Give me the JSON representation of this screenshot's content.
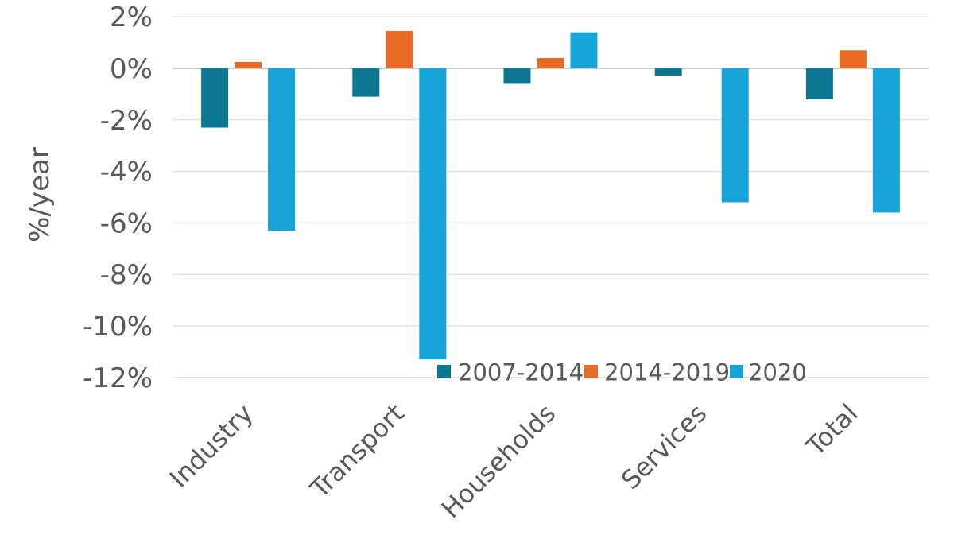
{
  "chart_data": {
    "type": "bar",
    "title": "",
    "xlabel": "",
    "ylabel": "%/year",
    "categories": [
      "Industry",
      "Transport",
      "Households",
      "Services",
      "Total"
    ],
    "series": [
      {
        "name": "2007-2014",
        "color": "#0d7690",
        "values": [
          -2.3,
          -1.1,
          -0.6,
          -0.3,
          -1.2
        ]
      },
      {
        "name": "2014-2019",
        "color": "#ea6b25",
        "values": [
          0.25,
          1.45,
          0.4,
          0.0,
          0.7
        ]
      },
      {
        "name": "2020",
        "color": "#18a4d6",
        "values": [
          -6.3,
          -11.3,
          1.4,
          -5.2,
          -5.6
        ]
      }
    ],
    "y_ticks": [
      {
        "value": 2,
        "label": "2%"
      },
      {
        "value": 0,
        "label": "0%"
      },
      {
        "value": -2,
        "label": "-2%"
      },
      {
        "value": -4,
        "label": "-4%"
      },
      {
        "value": -6,
        "label": "-6%"
      },
      {
        "value": -8,
        "label": "-8%"
      },
      {
        "value": -10,
        "label": "-10%"
      },
      {
        "value": -12,
        "label": "-12%"
      }
    ],
    "ylim": [
      -12,
      2
    ],
    "grid": true,
    "legend_position": "inside-bottom-right",
    "legend": [
      "2007-2014",
      "2014-2019",
      "2020"
    ],
    "x_label_rotation_deg": 45
  },
  "colors": {
    "background": "#ffffff",
    "text": "#595959",
    "gridline": "#dedede",
    "axis_line": "#cfcfcf"
  }
}
